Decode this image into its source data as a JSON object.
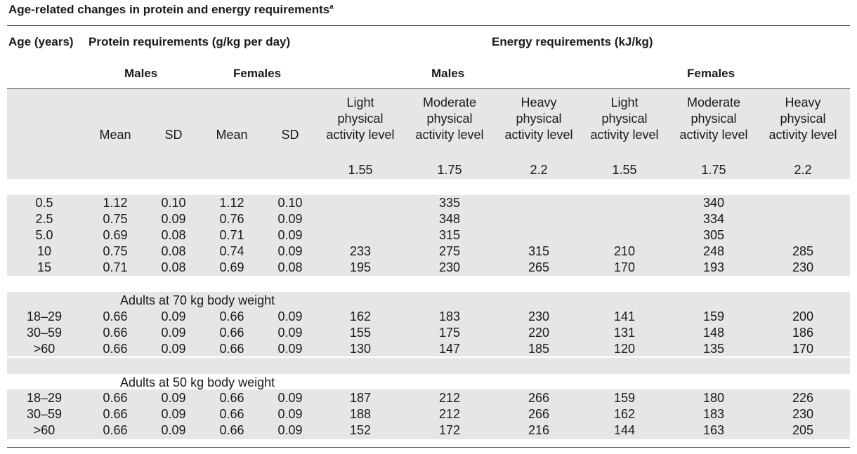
{
  "title": "Age-related changes in protein and energy requirements",
  "title_sup": "a",
  "header": {
    "age": "Age (years)",
    "protein": "Protein requirements (g/kg per day)",
    "energy": "Energy requirements (kJ/kg)",
    "protein_males": "Males",
    "protein_females": "Females",
    "energy_males": "Males",
    "energy_females": "Females"
  },
  "columns": [
    {
      "lines": [
        "Mean"
      ],
      "factor": ""
    },
    {
      "lines": [
        "SD"
      ],
      "factor": ""
    },
    {
      "lines": [
        "Mean"
      ],
      "factor": ""
    },
    {
      "lines": [
        "SD"
      ],
      "factor": ""
    },
    {
      "lines": [
        "Light",
        "physical",
        "activity level"
      ],
      "factor": "1.55"
    },
    {
      "lines": [
        "Moderate",
        "physical",
        "activity level"
      ],
      "factor": "1.75"
    },
    {
      "lines": [
        "Heavy",
        "physical",
        "activity level"
      ],
      "factor": "2.2"
    },
    {
      "lines": [
        "Light",
        "physical",
        "activity level"
      ],
      "factor": "1.55"
    },
    {
      "lines": [
        "Moderate",
        "physical",
        "activity level"
      ],
      "factor": "1.75"
    },
    {
      "lines": [
        "Heavy",
        "physical",
        "activity level"
      ],
      "factor": "2.2"
    }
  ],
  "section1_rows": [
    [
      "0.5",
      "1.12",
      "0.10",
      "1.12",
      "0.10",
      "",
      "335",
      "",
      "",
      "340",
      ""
    ],
    [
      "2.5",
      "0.75",
      "0.09",
      "0.76",
      "0.09",
      "",
      "348",
      "",
      "",
      "334",
      ""
    ],
    [
      "5.0",
      "0.69",
      "0.08",
      "0.71",
      "0.09",
      "",
      "315",
      "",
      "",
      "305",
      ""
    ],
    [
      "10",
      "0.75",
      "0.08",
      "0.74",
      "0.09",
      "233",
      "275",
      "315",
      "210",
      "248",
      "285"
    ],
    [
      "15",
      "0.71",
      "0.08",
      "0.69",
      "0.08",
      "195",
      "230",
      "265",
      "170",
      "193",
      "230"
    ]
  ],
  "section2_label": "Adults at 70 kg body weight",
  "section2_rows": [
    [
      "18–29",
      "0.66",
      "0.09",
      "0.66",
      "0.09",
      "162",
      "183",
      "230",
      "141",
      "159",
      "200"
    ],
    [
      "30–59",
      "0.66",
      "0.09",
      "0.66",
      "0.09",
      "155",
      "175",
      "220",
      "131",
      "148",
      "186"
    ],
    [
      ">60",
      "0.66",
      "0.09",
      "0.66",
      "0.09",
      "130",
      "147",
      "185",
      "120",
      "135",
      "170"
    ]
  ],
  "section3_label": "Adults at 50 kg body weight",
  "section3_rows": [
    [
      "18–29",
      "0.66",
      "0.09",
      "0.66",
      "0.09",
      "187",
      "212",
      "266",
      "159",
      "180",
      "226"
    ],
    [
      "30–59",
      "0.66",
      "0.09",
      "0.66",
      "0.09",
      "188",
      "212",
      "266",
      "162",
      "183",
      "230"
    ],
    [
      ">60",
      "0.66",
      "0.09",
      "0.66",
      "0.09",
      "152",
      "172",
      "216",
      "144",
      "163",
      "205"
    ]
  ]
}
